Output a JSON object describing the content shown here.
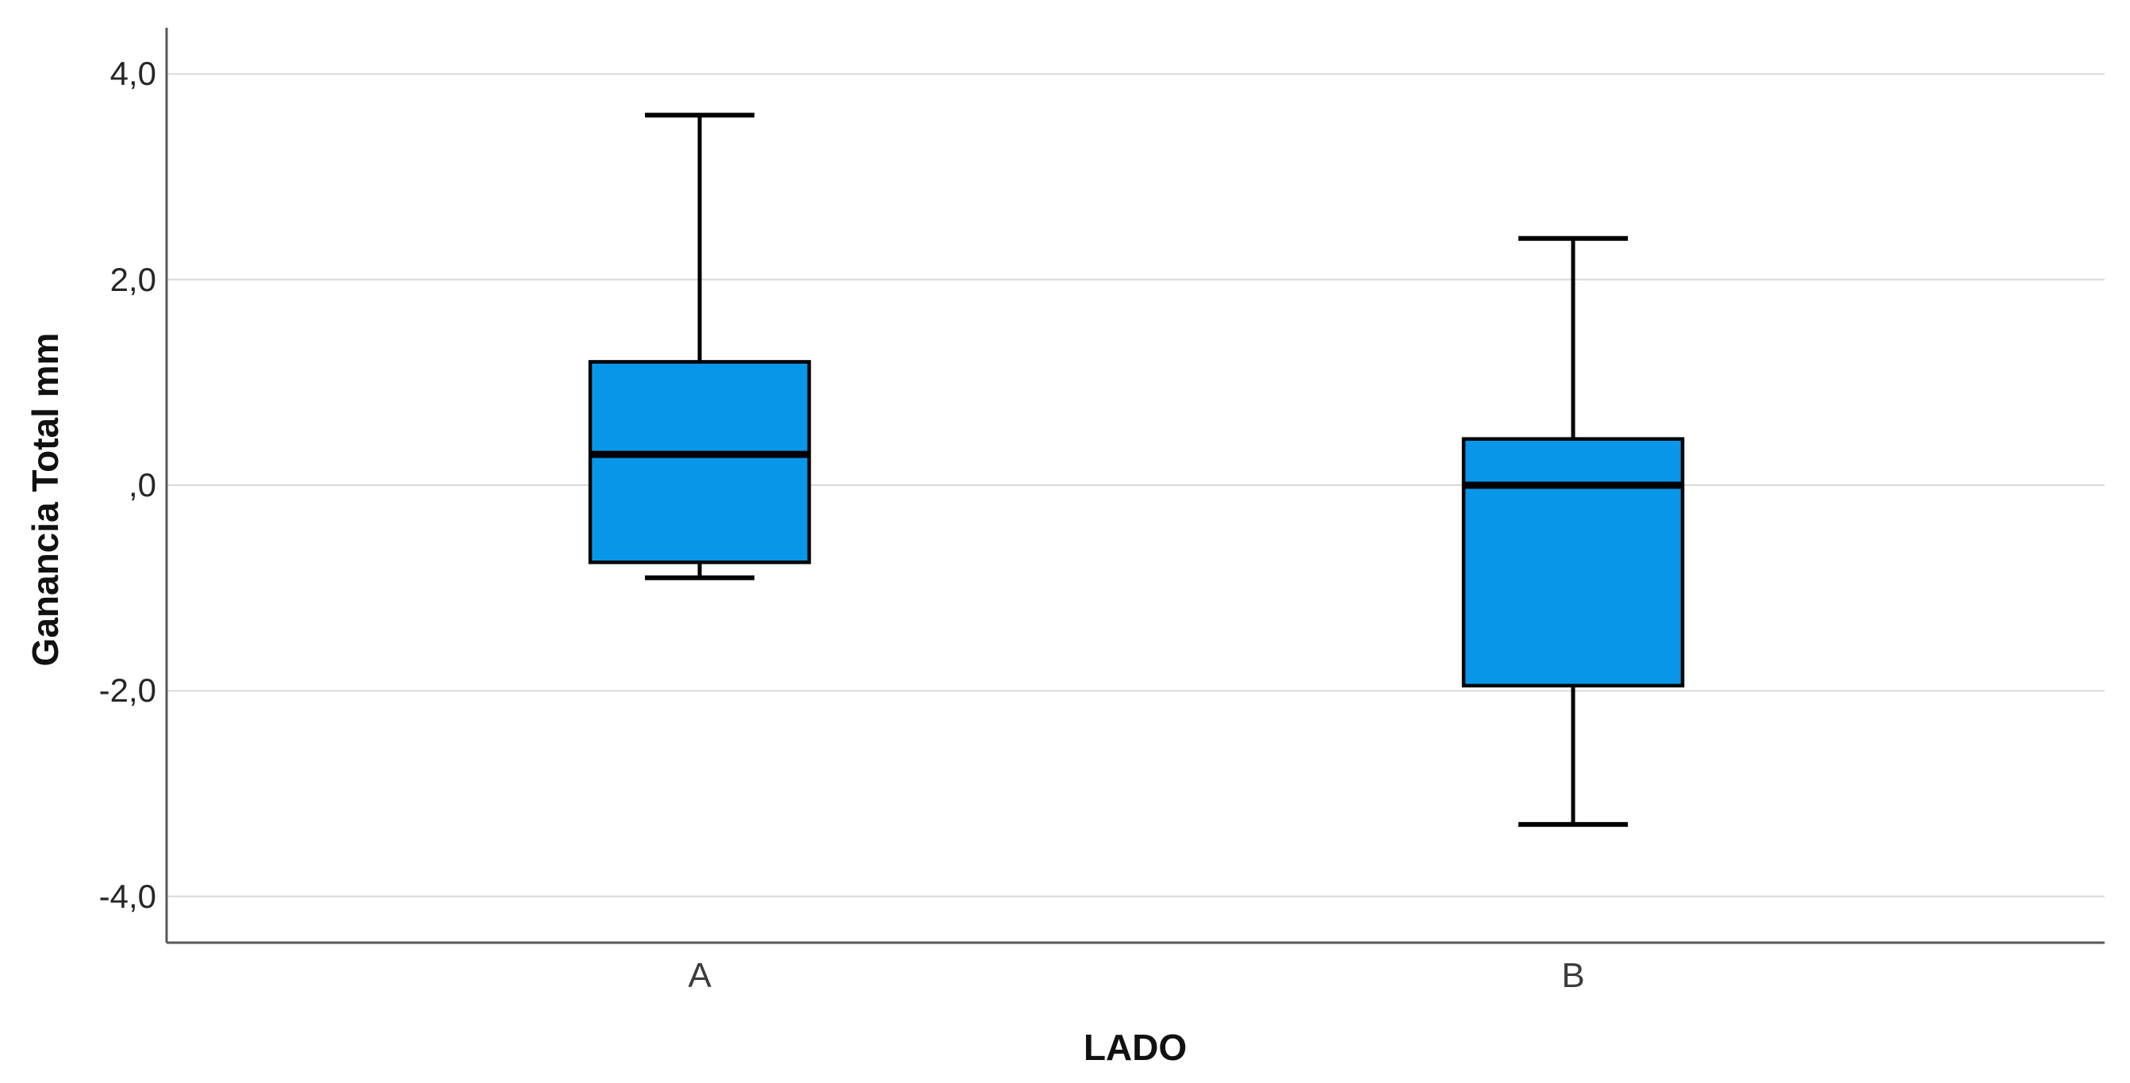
{
  "chart_data": {
    "type": "boxplot",
    "title": "",
    "xlabel": "LADO",
    "ylabel": "Ganancia Total mm",
    "categories": [
      "A",
      "B"
    ],
    "series": [
      {
        "category": "A",
        "whisker_low": -0.9,
        "q1": -0.75,
        "median": 0.3,
        "q3": 1.2,
        "whisker_high": 3.6
      },
      {
        "category": "B",
        "whisker_low": -3.3,
        "q1": -1.95,
        "median": 0.0,
        "q3": 0.45,
        "whisker_high": 2.4
      }
    ],
    "yticks": [
      {
        "value": 4,
        "label": "4,0"
      },
      {
        "value": 2,
        "label": "2,0"
      },
      {
        "value": 0,
        "label": ",0"
      },
      {
        "value": -2,
        "label": "-2,0"
      },
      {
        "value": -4,
        "label": "-4,0"
      }
    ],
    "ylim": [
      -4.45,
      4.45
    ],
    "grid": true,
    "legend": "none",
    "decimal_style": "comma",
    "colors": {
      "box_fill": "#0897e8",
      "box_stroke": "#000000",
      "axis_line": "#595959",
      "gridline": "#d9d9d9",
      "tick_text": "#262626"
    }
  }
}
